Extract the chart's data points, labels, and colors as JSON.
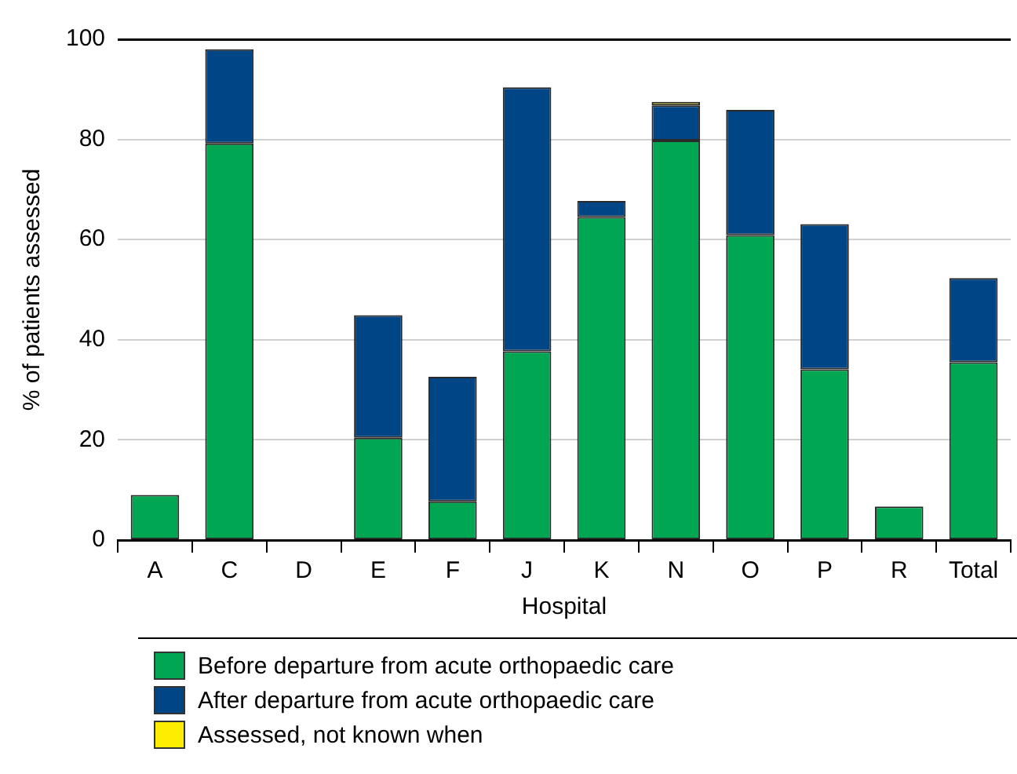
{
  "chart_data": {
    "type": "bar",
    "stacked": true,
    "xlabel": "Hospital",
    "ylabel": "% of patients assessed",
    "categories": [
      "A",
      "C",
      "D",
      "E",
      "F",
      "J",
      "K",
      "N",
      "O",
      "P",
      "R",
      "Total"
    ],
    "series": [
      {
        "name": "Before departure from acute orthopaedic care",
        "color": "#00a651",
        "values": [
          9.0,
          79.2,
          0,
          20.4,
          7.7,
          37.7,
          64.5,
          79.8,
          60.9,
          34.1,
          6.7,
          35.5
        ]
      },
      {
        "name": "After departure from acute orthopaedic care",
        "color": "#004586",
        "values": [
          0,
          18.8,
          0,
          24.5,
          24.9,
          52.7,
          3.2,
          7.0,
          25.0,
          29.0,
          0,
          16.8
        ]
      },
      {
        "name": "Assessed, not known when",
        "color": "#ffed00",
        "values": [
          0,
          0,
          0,
          0,
          0,
          0,
          0,
          0.7,
          0,
          0,
          0,
          0
        ]
      }
    ],
    "ylim": [
      0,
      100
    ],
    "yticks": [
      0,
      20,
      40,
      60,
      80,
      100
    ],
    "grid": "y",
    "legend": "bottom"
  }
}
